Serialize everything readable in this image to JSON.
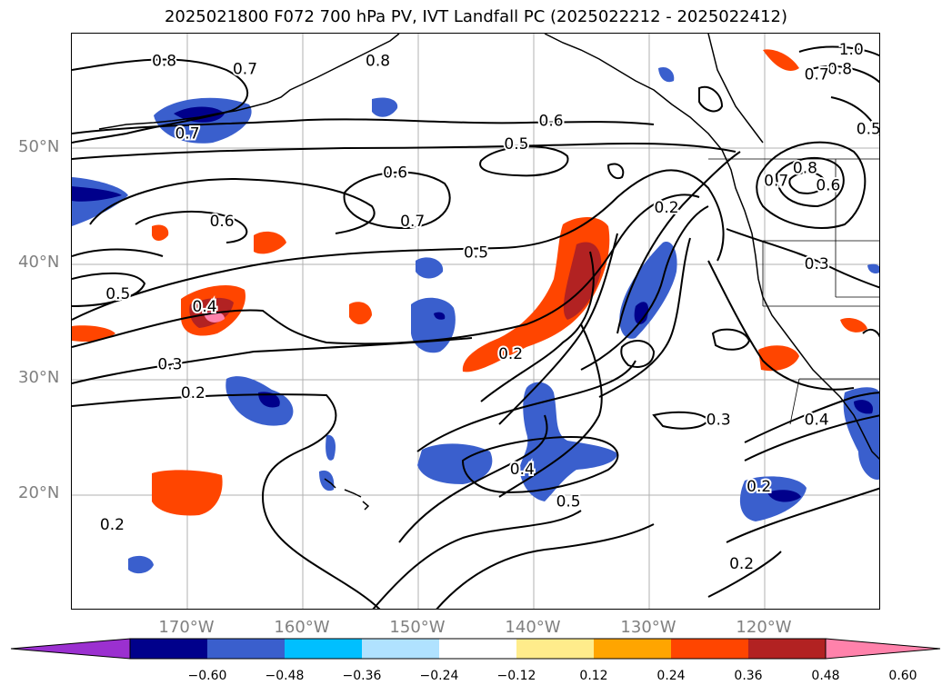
{
  "title": "2025021800 F072 700 hPa PV, IVT Landfall PC (2025022212 - 2025022412)",
  "lat_labels": [
    {
      "text": "50°N",
      "lat": 50
    },
    {
      "text": "40°N",
      "lat": 40
    },
    {
      "text": "30°N",
      "lat": 30
    },
    {
      "text": "20°N",
      "lat": 20
    }
  ],
  "lon_labels": [
    {
      "text": "170°W",
      "lon": -170
    },
    {
      "text": "160°W",
      "lon": -160
    },
    {
      "text": "150°W",
      "lon": -150
    },
    {
      "text": "140°W",
      "lon": -140
    },
    {
      "text": "130°W",
      "lon": -130
    },
    {
      "text": "120°W",
      "lon": -120
    }
  ],
  "colorbar": {
    "ticks": [
      "−0.60",
      "−0.48",
      "−0.36",
      "−0.24",
      "−0.12",
      "0.12",
      "0.24",
      "0.36",
      "0.48",
      "0.60"
    ],
    "colors": [
      "#9b30d0",
      "#00008b",
      "#3a5fcd",
      "#00bfff",
      "#b0e2ff",
      "#ffffff",
      "#ffec8b",
      "#ffa500",
      "#ff4500",
      "#b22222",
      "#ff82ab"
    ]
  },
  "contour_labels": [
    {
      "text": "0.8",
      "lon": -172,
      "lat": 57.5
    },
    {
      "text": "0.7",
      "lon": -165,
      "lat": 56.8
    },
    {
      "text": "0.8",
      "lon": -153.5,
      "lat": 57.5
    },
    {
      "text": "0.7",
      "lon": -170,
      "lat": 51.2
    },
    {
      "text": "0.6",
      "lon": -138.5,
      "lat": 52.3
    },
    {
      "text": "0.5",
      "lon": -141.5,
      "lat": 50.3
    },
    {
      "text": "0.6",
      "lon": -152,
      "lat": 47.8
    },
    {
      "text": "0.7",
      "lon": -150.5,
      "lat": 43.6
    },
    {
      "text": "0.6",
      "lon": -167,
      "lat": 43.6
    },
    {
      "text": "0.5",
      "lon": -145,
      "lat": 40.9
    },
    {
      "text": "0.5",
      "lon": -176,
      "lat": 37.3
    },
    {
      "text": "0.4",
      "lon": -168.5,
      "lat": 36.2
    },
    {
      "text": "0.3",
      "lon": -171.5,
      "lat": 31.2
    },
    {
      "text": "0.2",
      "lon": -142,
      "lat": 32.1
    },
    {
      "text": "0.2",
      "lon": -169.5,
      "lat": 28.7
    },
    {
      "text": "0.2",
      "lon": -128.5,
      "lat": 44.8
    },
    {
      "text": "0.3",
      "lon": -124,
      "lat": 26.4
    },
    {
      "text": "0.4",
      "lon": -141,
      "lat": 22.1
    },
    {
      "text": "0.5",
      "lon": -137,
      "lat": 19.3
    },
    {
      "text": "0.2",
      "lon": -120.5,
      "lat": 20.6
    },
    {
      "text": "0.2",
      "lon": -176.5,
      "lat": 17.3
    },
    {
      "text": "0.2",
      "lon": -122,
      "lat": 13.9
    },
    {
      "text": "0.4",
      "lon": -115.5,
      "lat": 26.4
    },
    {
      "text": "0.3",
      "lon": -115.5,
      "lat": 39.9
    },
    {
      "text": "1.0",
      "lon": -112.5,
      "lat": 58.5
    },
    {
      "text": "0.8",
      "lon": -113.5,
      "lat": 56.8
    },
    {
      "text": "0.7",
      "lon": -115.5,
      "lat": 56.3
    },
    {
      "text": "0.5",
      "lon": -111,
      "lat": 51.6
    },
    {
      "text": "0.6",
      "lon": -114.5,
      "lat": 46.7
    },
    {
      "text": "0.7",
      "lon": -119,
      "lat": 47.1
    },
    {
      "text": "0.8",
      "lon": -116.5,
      "lat": 48.2
    }
  ]
}
